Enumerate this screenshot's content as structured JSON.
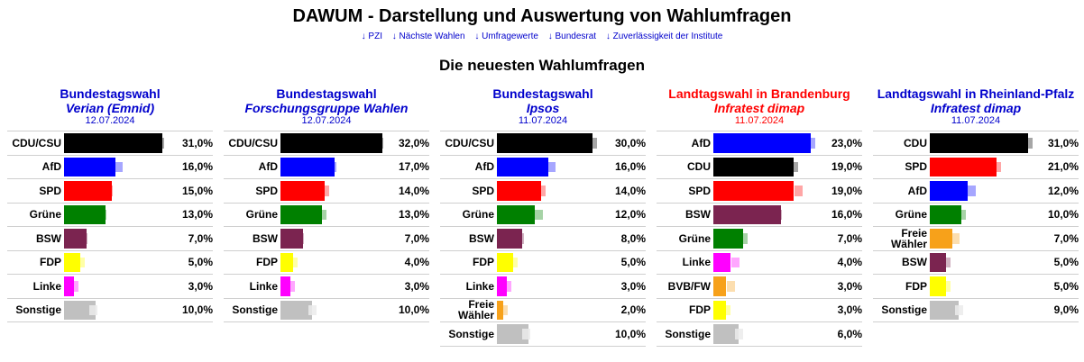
{
  "header": {
    "title": "DAWUM - Darstellung und Auswertung von Wahlumfragen",
    "nav": [
      "↓ PZI",
      "↓ Nächste Wahlen",
      "↓ Umfragewerte",
      "↓ Bundesrat",
      "↓ Zuverlässigkeit der Institute"
    ],
    "section_title": "Die neuesten Wahlumfragen"
  },
  "colors": {
    "CDU/CSU": "#000000",
    "CDU": "#000000",
    "AfD": "#0000ff",
    "SPD": "#ff0000",
    "Grüne": "#008000",
    "BSW": "#7b2450",
    "FDP": "#ffff00",
    "Linke": "#ff00ff",
    "Freie Wähler": "#f7a11a",
    "BVB/FW": "#f7a11a",
    "Sonstige": "#c0c0c0",
    "heading_federal": "#0000cc",
    "heading_state": "#ff0000"
  },
  "chart_data": [
    {
      "type": "bar",
      "orientation": "horizontal",
      "title": "Bundestagswahl",
      "institute": "Verian (Emnid)",
      "date": "12.07.2024",
      "heading_color": "#0000cc",
      "xlim": [
        0,
        32
      ],
      "categories": [
        "CDU/CSU",
        "AfD",
        "SPD",
        "Grüne",
        "BSW",
        "FDP",
        "Linke",
        "Sonstige"
      ],
      "values": [
        31.0,
        16.0,
        15.0,
        13.0,
        7.0,
        5.0,
        3.0,
        10.0
      ],
      "labels": [
        "31,0%",
        "16,0%",
        "15,0%",
        "13,0%",
        "7,0%",
        "5,0%",
        "3,0%",
        "10,0%"
      ],
      "previous": [
        30,
        17,
        14,
        12,
        6,
        5,
        3,
        9
      ]
    },
    {
      "type": "bar",
      "orientation": "horizontal",
      "title": "Bundestagswahl",
      "institute": "Forschungsgruppe Wahlen",
      "date": "12.07.2024",
      "heading_color": "#0000cc",
      "xlim": [
        0,
        32
      ],
      "categories": [
        "CDU/CSU",
        "AfD",
        "SPD",
        "Grüne",
        "BSW",
        "FDP",
        "Linke",
        "Sonstige"
      ],
      "values": [
        32.0,
        17.0,
        14.0,
        13.0,
        7.0,
        4.0,
        3.0,
        10.0
      ],
      "labels": [
        "32,0%",
        "17,0%",
        "14,0%",
        "13,0%",
        "7,0%",
        "4,0%",
        "3,0%",
        "10,0%"
      ],
      "previous": [
        31,
        16,
        14,
        13,
        6,
        4,
        3,
        10
      ]
    },
    {
      "type": "bar",
      "orientation": "horizontal",
      "title": "Bundestagswahl",
      "institute": "Ipsos",
      "date": "11.07.2024",
      "heading_color": "#0000cc",
      "xlim": [
        0,
        32
      ],
      "categories": [
        "CDU/CSU",
        "AfD",
        "SPD",
        "Grüne",
        "BSW",
        "FDP",
        "Linke",
        "Freie Wähler",
        "Sonstige"
      ],
      "values": [
        30.0,
        16.0,
        14.0,
        12.0,
        8.0,
        5.0,
        3.0,
        2.0,
        10.0
      ],
      "labels": [
        "30,0%",
        "16,0%",
        "14,0%",
        "12,0%",
        "8,0%",
        "5,0%",
        "3,0%",
        "2,0%",
        "10,0%"
      ],
      "previous": [
        30,
        17,
        14,
        13,
        7,
        5,
        3,
        2,
        9
      ]
    },
    {
      "type": "bar",
      "orientation": "horizontal",
      "title": "Landtagswahl in Brandenburg",
      "institute": "Infratest dimap",
      "date": "11.07.2024",
      "heading_color": "#ff0000",
      "xlim": [
        0,
        24
      ],
      "categories": [
        "AfD",
        "CDU",
        "SPD",
        "BSW",
        "Grüne",
        "Linke",
        "BVB/FW",
        "FDP",
        "Sonstige"
      ],
      "values": [
        23.0,
        19.0,
        19.0,
        16.0,
        7.0,
        4.0,
        3.0,
        3.0,
        6.0
      ],
      "labels": [
        "23,0%",
        "19,0%",
        "19,0%",
        "16,0%",
        "7,0%",
        "4,0%",
        "3,0%",
        "3,0%",
        "6,0%"
      ],
      "previous": [
        23,
        19,
        20,
        15,
        7,
        5,
        4,
        3,
        6
      ]
    },
    {
      "type": "bar",
      "orientation": "horizontal",
      "title": "Landtagswahl in Rheinland-Pfalz",
      "institute": "Infratest dimap",
      "date": "11.07.2024",
      "heading_color": "#0000cc",
      "xlim": [
        0,
        32
      ],
      "categories": [
        "CDU",
        "SPD",
        "AfD",
        "Grüne",
        "Freie Wähler",
        "BSW",
        "FDP",
        "Sonstige"
      ],
      "values": [
        31.0,
        21.0,
        12.0,
        10.0,
        7.0,
        5.0,
        5.0,
        9.0
      ],
      "labels": [
        "31,0%",
        "21,0%",
        "12,0%",
        "10,0%",
        "7,0%",
        "5,0%",
        "5,0%",
        "9,0%"
      ],
      "previous": [
        31,
        21,
        13,
        10,
        8,
        5,
        5,
        9
      ]
    }
  ]
}
